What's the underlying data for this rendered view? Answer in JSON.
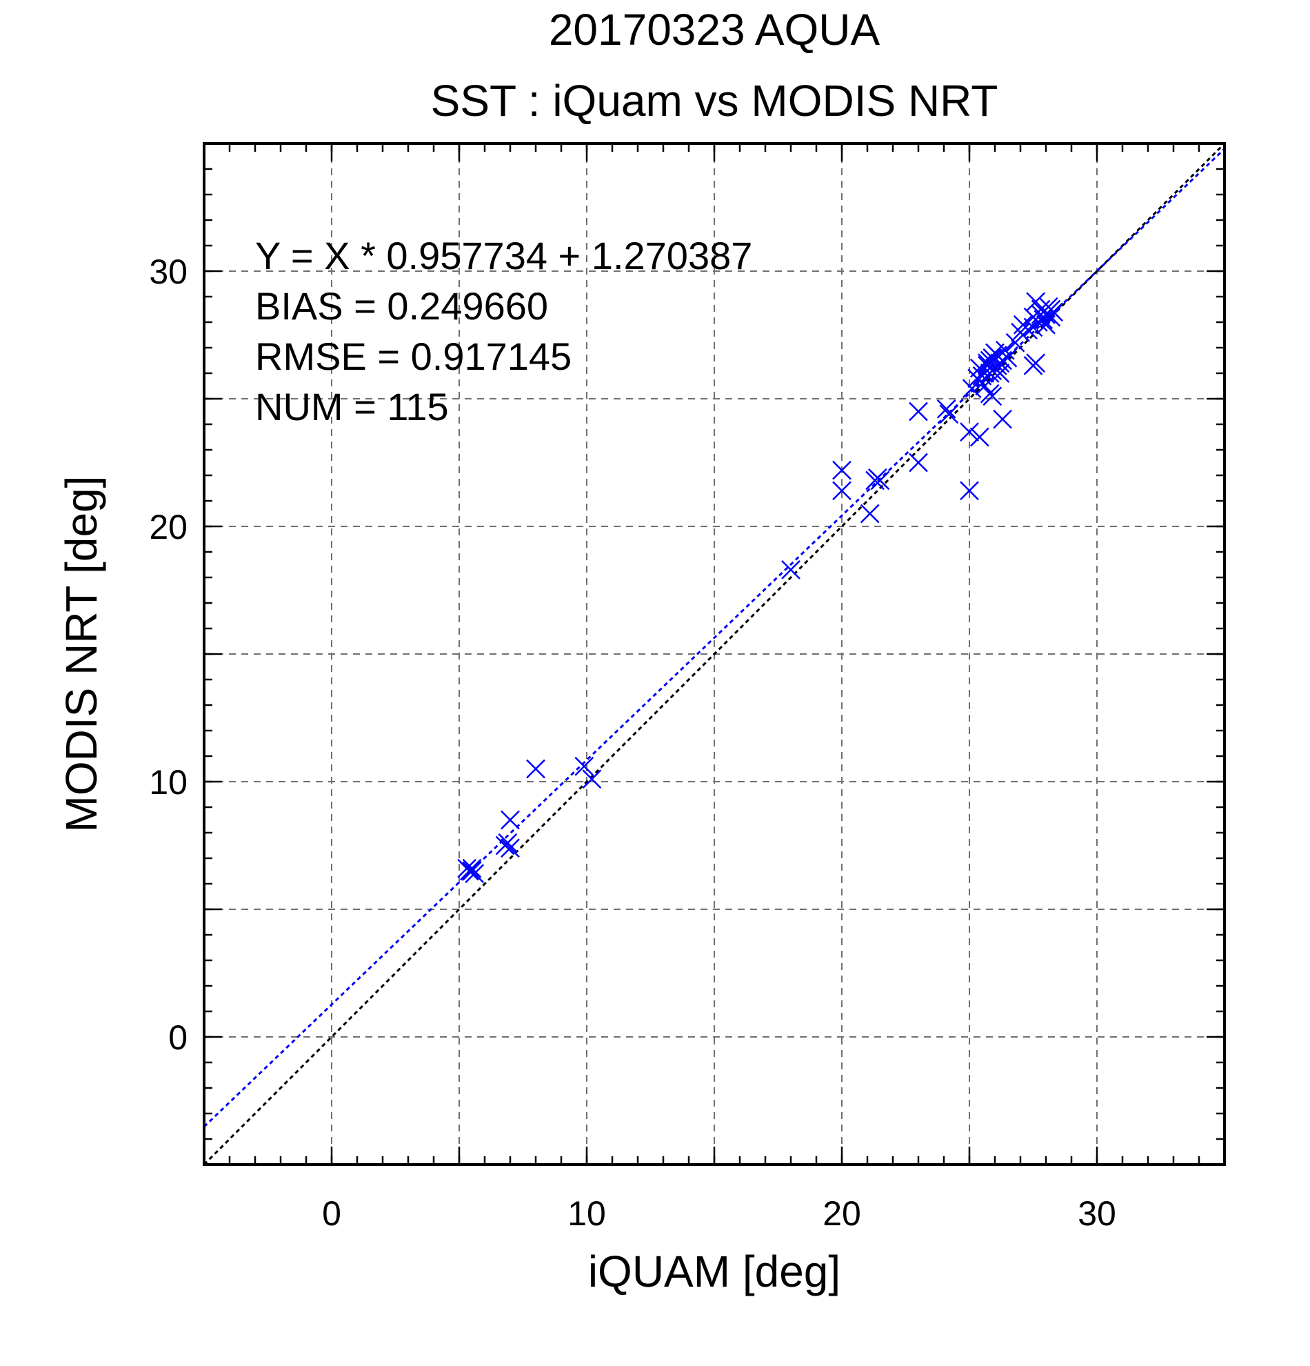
{
  "chart_data": {
    "type": "scatter",
    "title_lines": [
      "20170323 AQUA",
      "SST : iQuam vs MODIS NRT"
    ],
    "xlabel": "iQUAM [deg]",
    "ylabel": "MODIS NRT [deg]",
    "xlim": [
      -5,
      35
    ],
    "ylim": [
      -5,
      35
    ],
    "major_ticks": [
      0,
      10,
      20,
      30
    ],
    "major_tick_labels": [
      "0",
      "10",
      "20",
      "30"
    ],
    "grid_step": 5,
    "minor_tick_step": 1,
    "grid": true,
    "stats": [
      "Y = X * 0.957734 + 1.270387",
      "BIAS = 0.249660",
      "RMSE = 0.917145",
      "NUM = 115"
    ],
    "colors": {
      "points": "#0000ff",
      "fit_line": "#0000ff",
      "identity_line": "#000000"
    },
    "fit": {
      "slope": 0.957734,
      "intercept": 1.270387
    },
    "identity": {
      "slope": 1,
      "intercept": 0
    },
    "points": [
      [
        5.4,
        6.5
      ],
      [
        5.5,
        6.6
      ],
      [
        5.6,
        6.4
      ],
      [
        5.5,
        6.5
      ],
      [
        5.3,
        6.6
      ],
      [
        6.8,
        7.5
      ],
      [
        7.0,
        7.4
      ],
      [
        6.9,
        7.6
      ],
      [
        7.0,
        8.5
      ],
      [
        8.0,
        10.5
      ],
      [
        9.9,
        10.6
      ],
      [
        10.2,
        10.1
      ],
      [
        18.0,
        18.3
      ],
      [
        20.0,
        21.4
      ],
      [
        20.0,
        22.2
      ],
      [
        21.1,
        20.5
      ],
      [
        21.3,
        21.8
      ],
      [
        21.4,
        21.9
      ],
      [
        21.5,
        21.8
      ],
      [
        23.0,
        22.5
      ],
      [
        23.0,
        24.5
      ],
      [
        24.1,
        24.6
      ],
      [
        24.2,
        24.4
      ],
      [
        25.0,
        21.4
      ],
      [
        25.0,
        23.7
      ],
      [
        25.4,
        23.5
      ],
      [
        25.1,
        25.4
      ],
      [
        25.3,
        25.8
      ],
      [
        25.4,
        26.2
      ],
      [
        25.5,
        25.6
      ],
      [
        25.6,
        26.0
      ],
      [
        25.7,
        26.3
      ],
      [
        25.8,
        25.2
      ],
      [
        25.9,
        25.1
      ],
      [
        25.6,
        25.5
      ],
      [
        25.8,
        26.5
      ],
      [
        25.9,
        26.1
      ],
      [
        26.0,
        26.8
      ],
      [
        26.1,
        26.3
      ],
      [
        26.2,
        26.0
      ],
      [
        26.3,
        26.5
      ],
      [
        26.0,
        26.2
      ],
      [
        25.9,
        26.6
      ],
      [
        26.1,
        26.7
      ],
      [
        26.4,
        26.9
      ],
      [
        26.5,
        26.6
      ],
      [
        26.3,
        24.2
      ],
      [
        25.5,
        25.9
      ],
      [
        25.7,
        26.4
      ],
      [
        26.2,
        26.4
      ],
      [
        25.8,
        26.0
      ],
      [
        26.8,
        27.2
      ],
      [
        27.0,
        27.6
      ],
      [
        27.1,
        27.9
      ],
      [
        27.3,
        27.7
      ],
      [
        27.5,
        27.8
      ],
      [
        27.5,
        26.3
      ],
      [
        27.6,
        26.4
      ],
      [
        27.5,
        28.2
      ],
      [
        27.6,
        28.8
      ],
      [
        27.7,
        28.0
      ],
      [
        27.8,
        28.5
      ],
      [
        27.9,
        28.1
      ],
      [
        28.0,
        28.3
      ],
      [
        28.1,
        28.6
      ],
      [
        28.2,
        28.2
      ],
      [
        28.3,
        28.4
      ],
      [
        28.0,
        27.9
      ],
      [
        28.2,
        28.5
      ],
      [
        27.8,
        28.3
      ]
    ]
  }
}
